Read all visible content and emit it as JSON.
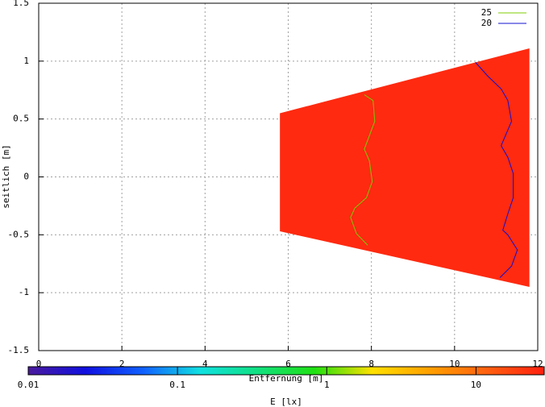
{
  "chart_data": {
    "type": "heatmap-contour",
    "xlabel": "Entfernung [m]",
    "ylabel": "seitlich [m]",
    "xlim": [
      0,
      12
    ],
    "xticks": [
      0,
      2,
      4,
      6,
      8,
      10,
      12
    ],
    "ylim": [
      -1.5,
      1.5
    ],
    "yticks": [
      1.5,
      1,
      0.5,
      0,
      -0.5,
      -1,
      -1.5
    ],
    "grid": true,
    "legend": "upper right",
    "region": {
      "color": "#ff2a10",
      "x": [
        5.8,
        11.8,
        11.8,
        5.8
      ],
      "y": [
        0.55,
        1.11,
        -0.95,
        -0.47
      ]
    },
    "series": [
      {
        "name": "25",
        "color": "#7ccc00",
        "x": [
          7.83,
          8.04,
          8.08,
          7.83,
          7.95,
          8.02,
          7.88,
          7.6,
          7.5,
          7.64,
          7.91
        ],
        "y": [
          0.71,
          0.66,
          0.48,
          0.24,
          0.14,
          -0.04,
          -0.18,
          -0.27,
          -0.35,
          -0.49,
          -0.59
        ]
      },
      {
        "name": "20",
        "color": "#1010d0",
        "x": [
          10.5,
          10.8,
          11.12,
          11.28,
          11.37,
          11.12,
          11.28,
          11.41,
          11.41,
          11.28,
          11.16,
          11.28,
          11.51,
          11.37,
          11.09
        ],
        "y": [
          0.99,
          0.87,
          0.76,
          0.66,
          0.48,
          0.27,
          0.17,
          0.03,
          -0.18,
          -0.32,
          -0.46,
          -0.5,
          -0.63,
          -0.77,
          -0.87
        ]
      }
    ],
    "colorbar": {
      "label": "E [lx]",
      "log": true,
      "lim": [
        0.01,
        29
      ],
      "ticks": [
        0.01,
        0.1,
        1,
        10
      ],
      "colormap": [
        "#4a1a9c",
        "#1010e0",
        "#1060ff",
        "#10e0e0",
        "#10e080",
        "#20e010",
        "#ffe000",
        "#ffa000",
        "#ff6010",
        "#ff2010"
      ]
    }
  }
}
